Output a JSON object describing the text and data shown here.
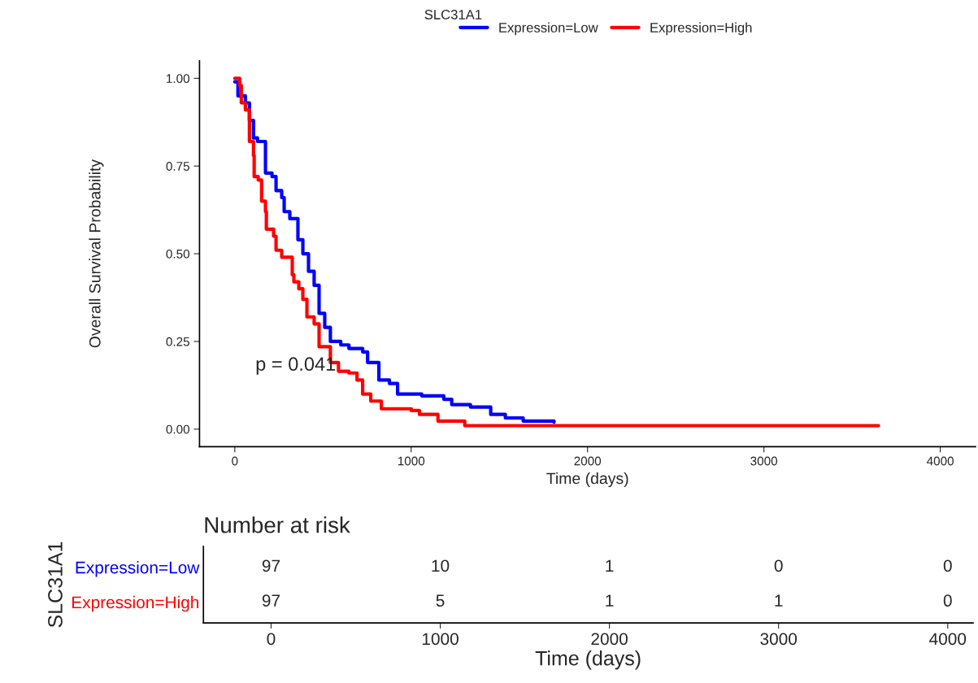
{
  "chart_data": [
    {
      "type": "step",
      "xlabel": "Time (days)",
      "ylabel": "Overall Survival Probability",
      "legend_title": "SLC31A1",
      "legend": "top",
      "grid": false,
      "line_style": "solid",
      "marker": "none",
      "xlim": [
        -200,
        4200
      ],
      "xticks": [
        0,
        1000,
        2000,
        3000,
        4000
      ],
      "ylim": [
        -0.05,
        1.05
      ],
      "yticks": [
        {
          "value": 0,
          "label": "0.00"
        },
        {
          "value": 0.25,
          "label": "0.25"
        },
        {
          "value": 0.5,
          "label": "0.50"
        },
        {
          "value": 0.75,
          "label": "0.75"
        },
        {
          "value": 1,
          "label": "1.00"
        }
      ],
      "annotations": [
        "p = 0.041"
      ],
      "series": [
        {
          "name": "Expression=Low",
          "color": "#0000ff",
          "x": [
            0,
            18,
            60,
            83,
            106,
            129,
            174,
            211,
            234,
            266,
            280,
            312,
            358,
            386,
            418,
            450,
            478,
            510,
            542,
            601,
            647,
            725,
            753,
            817,
            877,
            923,
            1060,
            1185,
            1230,
            1336,
            1451,
            1534,
            1635,
            1810
          ],
          "values": [
            0.99,
            0.95,
            0.93,
            0.88,
            0.83,
            0.82,
            0.73,
            0.72,
            0.68,
            0.66,
            0.62,
            0.6,
            0.54,
            0.5,
            0.45,
            0.41,
            0.33,
            0.29,
            0.25,
            0.24,
            0.23,
            0.22,
            0.19,
            0.14,
            0.13,
            0.1,
            0.095,
            0.085,
            0.07,
            0.063,
            0.042,
            0.032,
            0.023,
            0.02
          ]
        },
        {
          "name": "Expression=High",
          "color": "#ff0000",
          "x": [
            0,
            28,
            37,
            60,
            83,
            106,
            110,
            133,
            152,
            174,
            179,
            220,
            234,
            266,
            326,
            335,
            363,
            386,
            409,
            450,
            478,
            542,
            588,
            647,
            693,
            725,
            771,
            831,
            1001,
            1047,
            1152,
            1304,
            3650
          ],
          "values": [
            1.0,
            0.98,
            0.93,
            0.91,
            0.82,
            0.78,
            0.72,
            0.71,
            0.65,
            0.62,
            0.57,
            0.55,
            0.51,
            0.49,
            0.44,
            0.42,
            0.4,
            0.37,
            0.32,
            0.3,
            0.235,
            0.19,
            0.165,
            0.16,
            0.14,
            0.1,
            0.08,
            0.058,
            0.053,
            0.042,
            0.023,
            0.01,
            0.01
          ]
        }
      ]
    },
    {
      "type": "heatmap",
      "title": "Number at risk",
      "xlabel": "Time (days)",
      "ylabel": "SLC31A1",
      "data_labels": true,
      "categories": [
        "0",
        "1000",
        "2000",
        "3000",
        "4000"
      ],
      "y_categories": [
        "Expression=Low",
        "Expression=High"
      ],
      "colors": [
        "#0000ff",
        "#ff0000"
      ],
      "cells": [
        [
          97,
          10,
          1,
          0,
          0
        ],
        [
          97,
          5,
          1,
          1,
          0
        ]
      ]
    }
  ]
}
